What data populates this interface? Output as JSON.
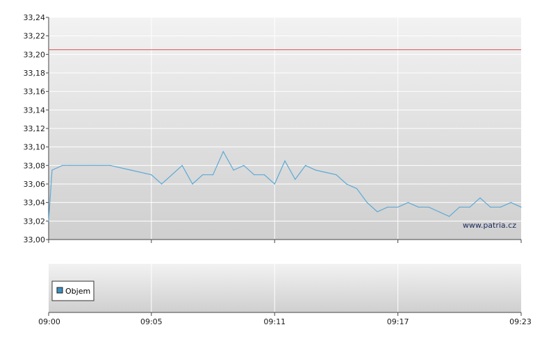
{
  "chart_data": [
    {
      "type": "line",
      "ylim": [
        33.0,
        33.24
      ],
      "yticks": [
        "33,00",
        "33,02",
        "33,04",
        "33,06",
        "33,08",
        "33,10",
        "33,12",
        "33,14",
        "33,16",
        "33,18",
        "33,20",
        "33,22",
        "33,24"
      ],
      "xlim": [
        "09:00",
        "09:23"
      ],
      "xticks": [
        "09:00",
        "09:05",
        "09:11",
        "09:17",
        "09:23"
      ],
      "reference_line": {
        "value": 33.205,
        "color": "#d9534f"
      },
      "series_color": "#5aa9d6",
      "series": [
        {
          "x": [
            "09:00:00",
            "09:00:10",
            "09:00:40",
            "09:01:00",
            "09:02:00",
            "09:03:00",
            "09:04:00",
            "09:05:00",
            "09:05:30",
            "09:06:00",
            "09:06:30",
            "09:07:00",
            "09:07:30",
            "09:08:00",
            "09:08:30",
            "09:09:00",
            "09:09:30",
            "09:10:00",
            "09:10:30",
            "09:11:00",
            "09:11:30",
            "09:12:00",
            "09:12:30",
            "09:13:00",
            "09:14:00",
            "09:14:30",
            "09:15:00",
            "09:15:30",
            "09:16:00",
            "09:16:30",
            "09:17:00",
            "09:17:30",
            "09:18:00",
            "09:18:30",
            "09:19:00",
            "09:19:30",
            "09:20:00",
            "09:20:30",
            "09:21:00",
            "09:21:30",
            "09:22:00",
            "09:22:30",
            "09:23:00"
          ],
          "values": [
            33.02,
            33.075,
            33.08,
            33.08,
            33.08,
            33.08,
            33.075,
            33.07,
            33.06,
            33.07,
            33.08,
            33.06,
            33.07,
            33.07,
            33.095,
            33.075,
            33.08,
            33.07,
            33.07,
            33.06,
            33.085,
            33.065,
            33.08,
            33.075,
            33.07,
            33.06,
            33.055,
            33.04,
            33.03,
            33.035,
            33.035,
            33.04,
            33.035,
            33.035,
            33.03,
            33.025,
            33.035,
            33.035,
            33.045,
            33.035,
            33.035,
            33.04,
            33.035
          ]
        }
      ],
      "watermark": "www.patria.cz"
    },
    {
      "type": "bar",
      "legend": [
        {
          "label": "Objem",
          "color": "#3a8fc0"
        }
      ],
      "legend_position": "bottom-left",
      "xticks": [
        "09:00",
        "09:05",
        "09:11",
        "09:17",
        "09:23"
      ]
    }
  ]
}
